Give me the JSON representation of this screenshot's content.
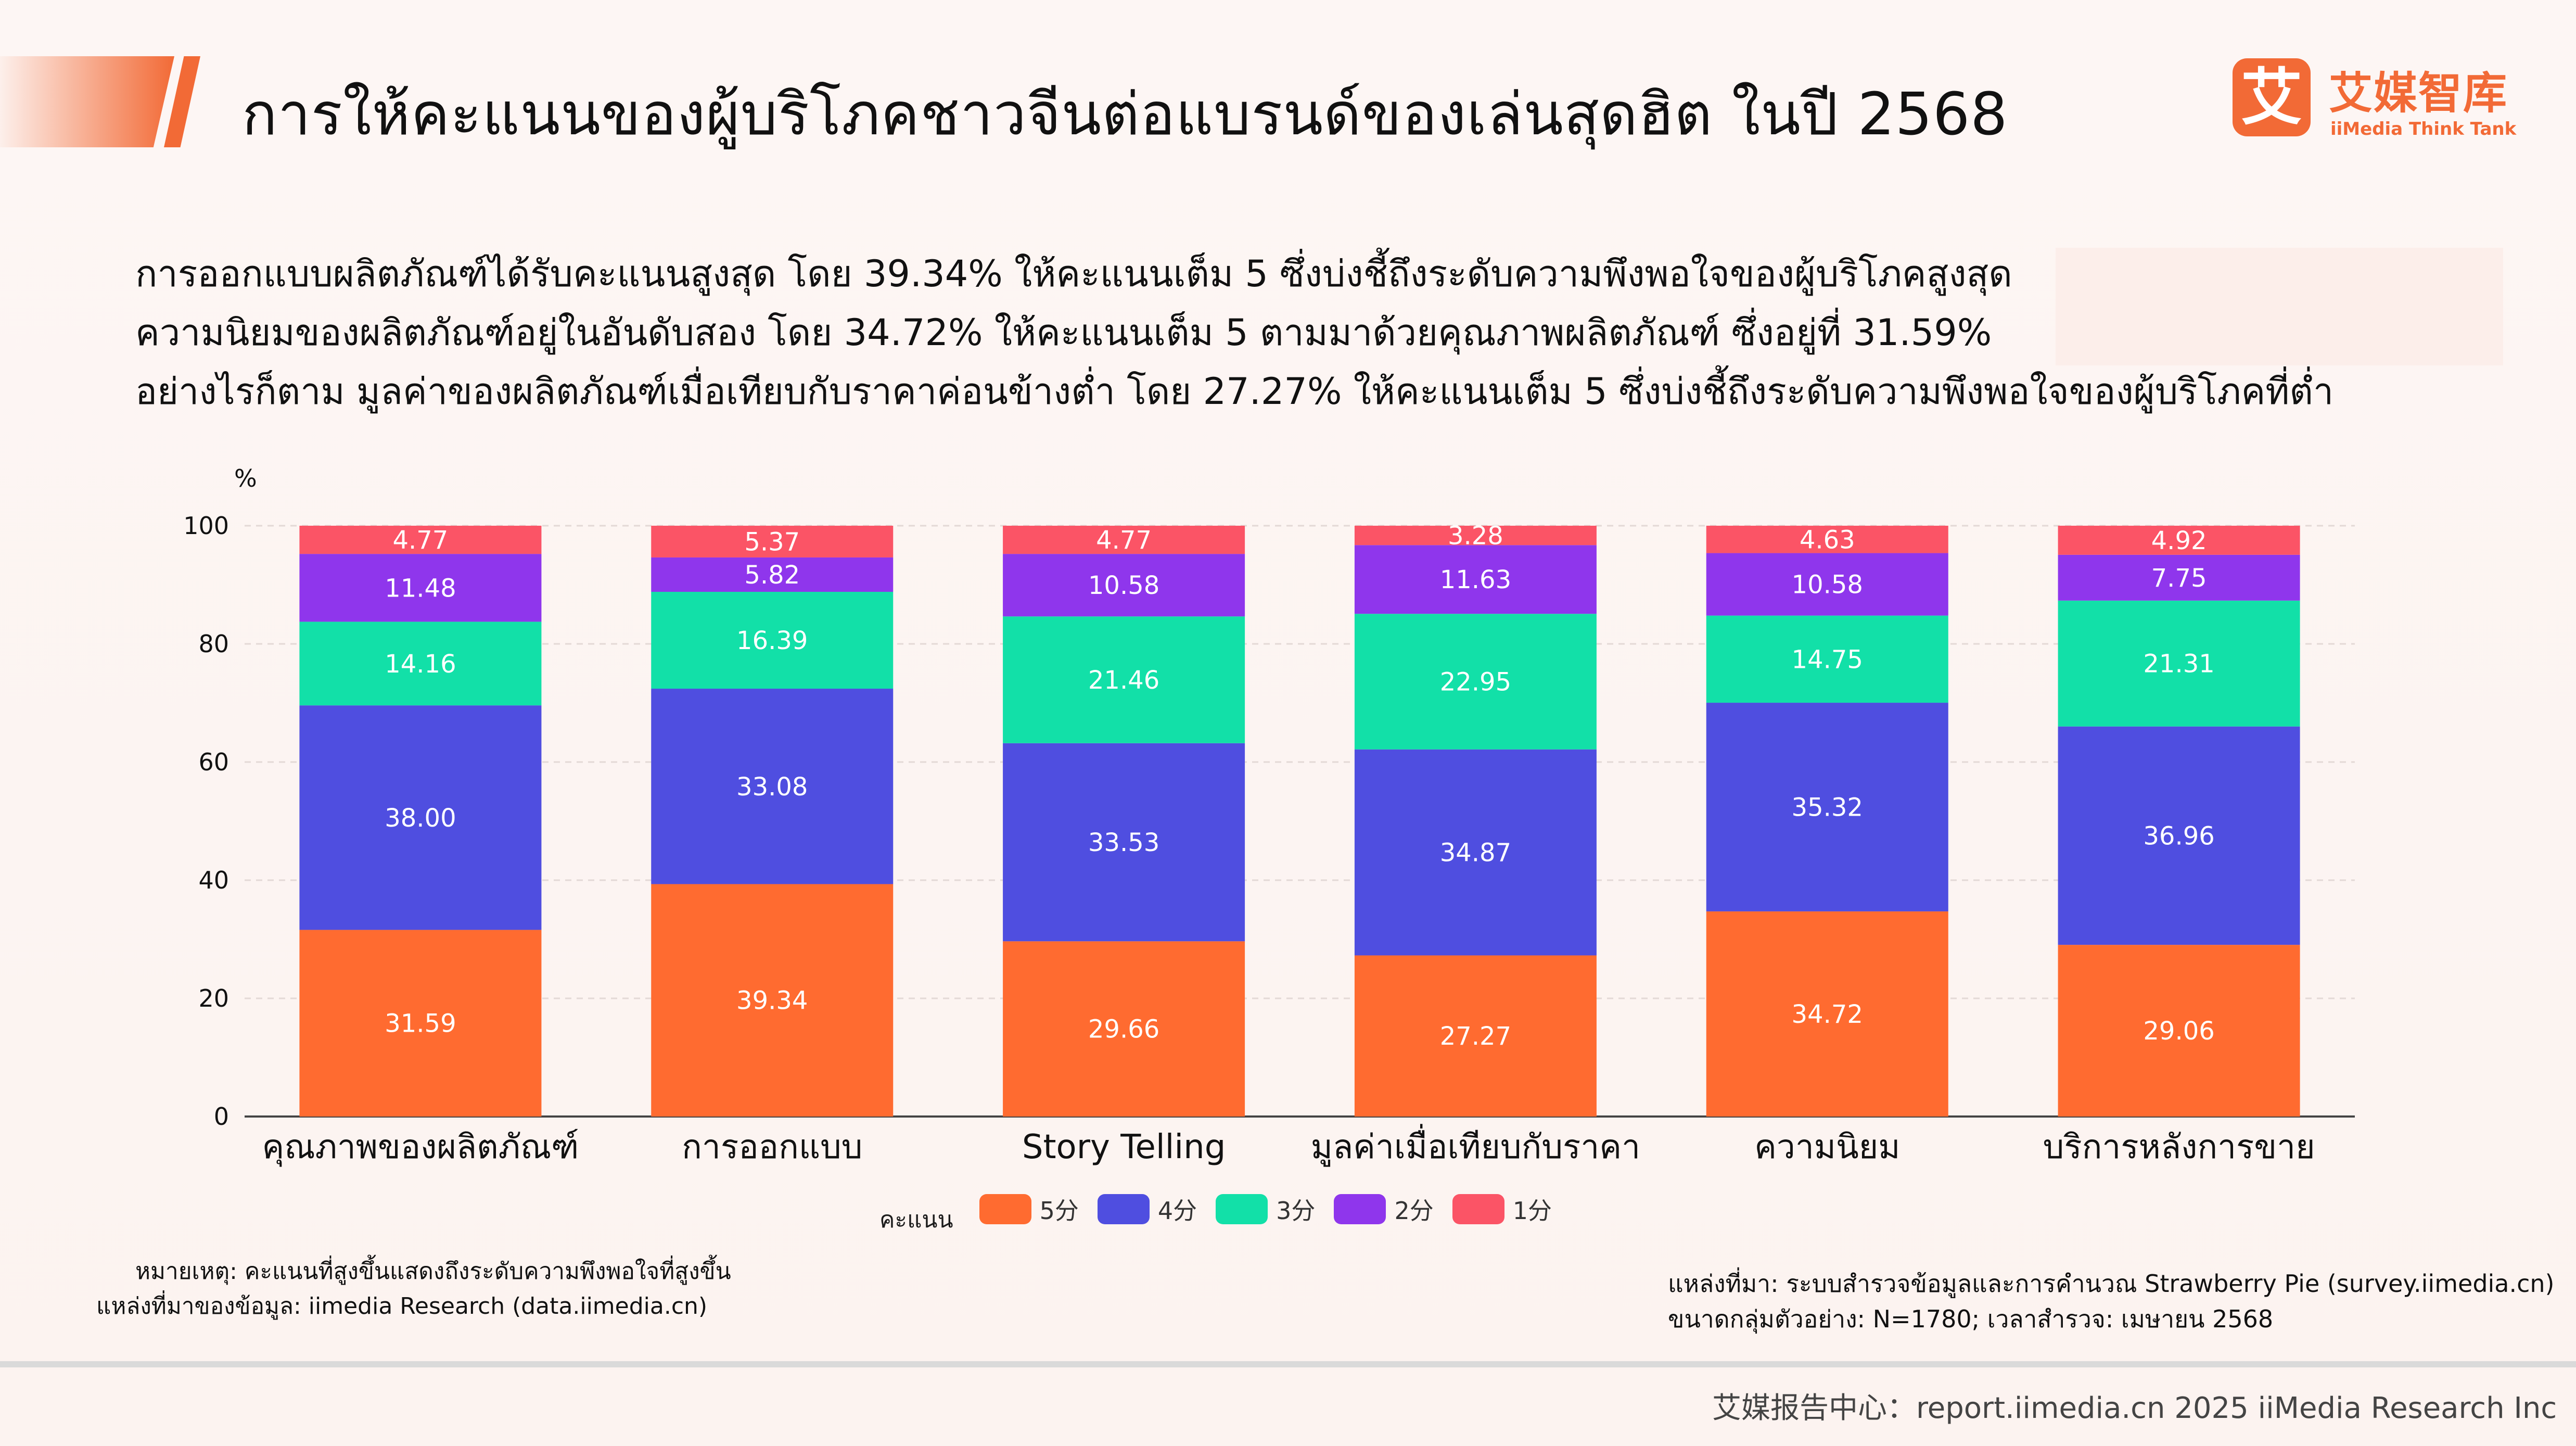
{
  "header": {
    "title": "การให้คะแนนของผู้บริโภคชาวจีนต่อแบรนด์ของเล่นสุดฮิต ในปี 2568",
    "logo_glyph": "艾",
    "logo_cn": "艾媒智库",
    "logo_en": "iiMedia Think Tank",
    "accent_color": "#f26a36"
  },
  "summary": [
    "การออกแบบผลิตภัณฑ์ได้รับคะแนนสูงสุด โดย 39.34% ให้คะแนนเต็ม 5 ซึ่งบ่งชี้ถึงระดับความพึงพอใจของผู้บริโภคสูงสุด",
    "ความนิยมของผลิตภัณฑ์อยู่ในอันดับสอง โดย 34.72% ให้คะแนนเต็ม 5 ตามมาด้วยคุณภาพผลิตภัณฑ์ ซึ่งอยู่ที่ 31.59%",
    "อย่างไรก็ตาม มูลค่าของผลิตภัณฑ์เมื่อเทียบกับราคาค่อนข้างต่ำ โดย 27.27% ให้คะแนนเต็ม 5 ซึ่งบ่งชี้ถึงระดับความพึงพอใจของผู้บริโภคที่ต่ำ"
  ],
  "chart_data": {
    "type": "bar",
    "stacked": true,
    "ylabel": "%",
    "ylim": [
      0,
      100
    ],
    "yticks": [
      0,
      20,
      40,
      60,
      80,
      100
    ],
    "grid": true,
    "categories": [
      "คุณภาพของผลิตภัณฑ์",
      "การออกแบบ",
      "Story Telling",
      "มูลค่าเมื่อเทียบกับราคา",
      "ความนิยม",
      "บริการหลังการขาย"
    ],
    "series": [
      {
        "name": "5分",
        "color": "#ff6b30",
        "values": [
          31.59,
          39.34,
          29.66,
          27.27,
          34.72,
          29.06
        ],
        "labels": [
          "31.59",
          "39.34",
          "29.66",
          "27.27",
          "34.72",
          "29.06"
        ]
      },
      {
        "name": "4分",
        "color": "#4f4ee0",
        "values": [
          38.0,
          33.08,
          33.53,
          34.87,
          35.32,
          36.96
        ],
        "labels": [
          "38.00",
          "33.08",
          "33.53",
          "34.87",
          "35.32",
          "36.96"
        ]
      },
      {
        "name": "3分",
        "color": "#12e0a8",
        "values": [
          14.16,
          16.39,
          21.46,
          22.95,
          14.75,
          21.31
        ],
        "labels": [
          "14.16",
          "16.39",
          "21.46",
          "22.95",
          "14.75",
          "21.31"
        ]
      },
      {
        "name": "2分",
        "color": "#8f36ec",
        "values": [
          11.48,
          5.82,
          10.58,
          11.63,
          10.58,
          7.75
        ],
        "labels": [
          "11.48",
          "5.82",
          "10.58",
          "11.63",
          "10.58",
          "7.75"
        ]
      },
      {
        "name": "1分",
        "color": "#fb5466",
        "values": [
          4.77,
          5.37,
          4.77,
          3.28,
          4.63,
          4.92
        ],
        "labels": [
          "4.77",
          "5.37",
          "4.77",
          "3.28",
          "4.63",
          "4.92"
        ]
      }
    ],
    "legend_title": "คะแนน",
    "legend_position": "bottom"
  },
  "notes": {
    "note": "หมายเหตุ: คะแนนที่สูงขึ้นแสดงถึงระดับความพึงพอใจที่สูงขึ้น",
    "data_source": "แหล่งที่มาของข้อมูล: iimedia Research (data.iimedia.cn)",
    "survey_source": "แหล่งที่มา: ระบบสำรวจข้อมูลและการคำนวณ Strawberry Pie (survey.iimedia.cn)",
    "sample": "ขนาดกลุ่มตัวอย่าง: N=1780; เวลาสำรวจ: เมษายน 2568"
  },
  "footer": {
    "text": "艾媒报告中心：report.iimedia.cn   2025 iiMedia Research Inc"
  }
}
